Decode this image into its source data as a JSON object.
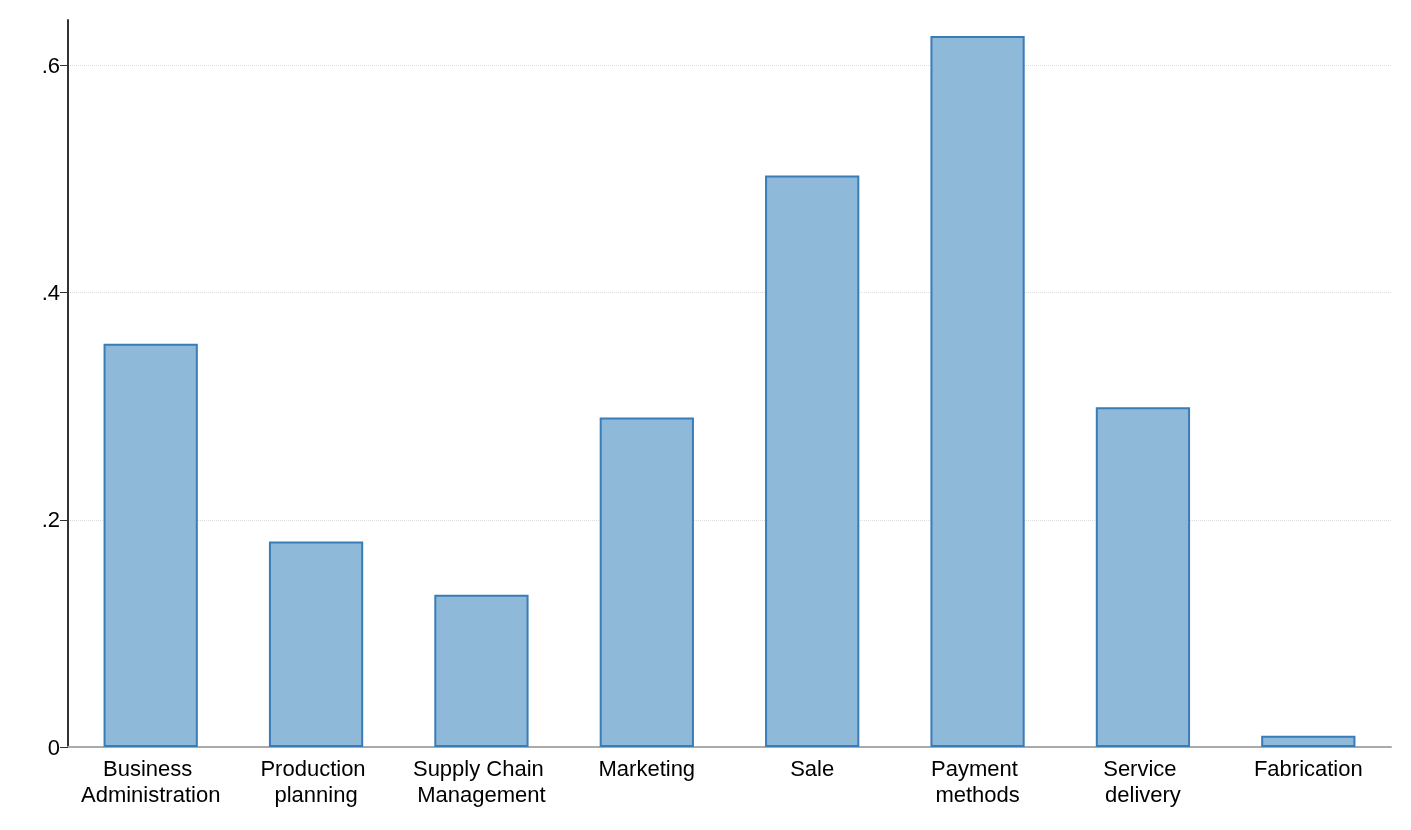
{
  "chart_data": {
    "type": "bar",
    "categories": [
      "Business Administration",
      "Production planning",
      "Supply Chain Management",
      "Marketing",
      "Sale",
      "Payment methods",
      "Service delivery",
      "Fabrication"
    ],
    "values": [
      0.355,
      0.181,
      0.134,
      0.29,
      0.503,
      0.626,
      0.299,
      0.01
    ],
    "color": "#8fb9d9",
    "ylim": [
      0,
      0.64
    ],
    "yticks": [
      0,
      {
        "value": 0.2,
        "label": ".2"
      },
      {
        "value": 0.4,
        "label": ".4"
      },
      {
        "value": 0.6,
        "label": ".6"
      }
    ],
    "grid": "y"
  }
}
